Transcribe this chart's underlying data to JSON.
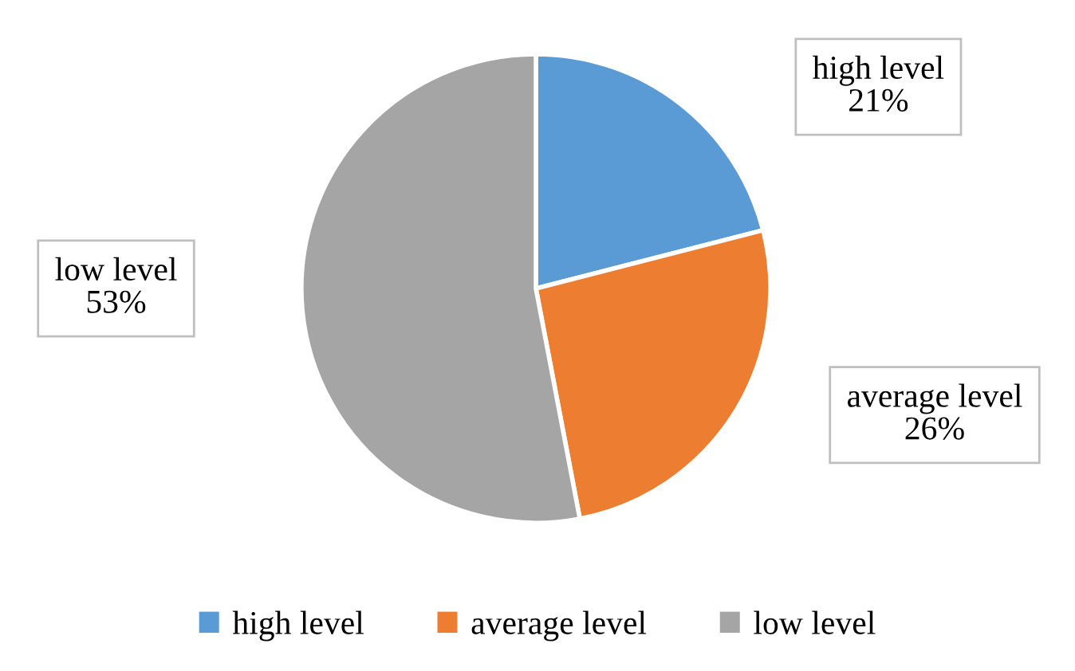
{
  "chart_data": {
    "type": "pie",
    "categories": [
      "high level",
      "average level",
      "low level"
    ],
    "values": [
      21,
      26,
      53
    ],
    "colors": [
      "#5b9bd5",
      "#ed7d31",
      "#a5a5a5"
    ],
    "value_labels": [
      "21%",
      "26%",
      "53%"
    ],
    "legend": "bottom"
  }
}
